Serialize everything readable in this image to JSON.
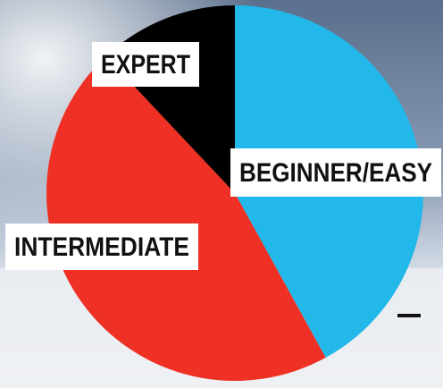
{
  "chart_data": {
    "type": "pie",
    "categories": [
      "BEGINNER/EASY",
      "INTERMEDIATE",
      "EXPERT"
    ],
    "values": [
      42,
      46,
      12
    ],
    "colors": [
      "#22b8ea",
      "#ee3124",
      "#000000"
    ]
  }
}
